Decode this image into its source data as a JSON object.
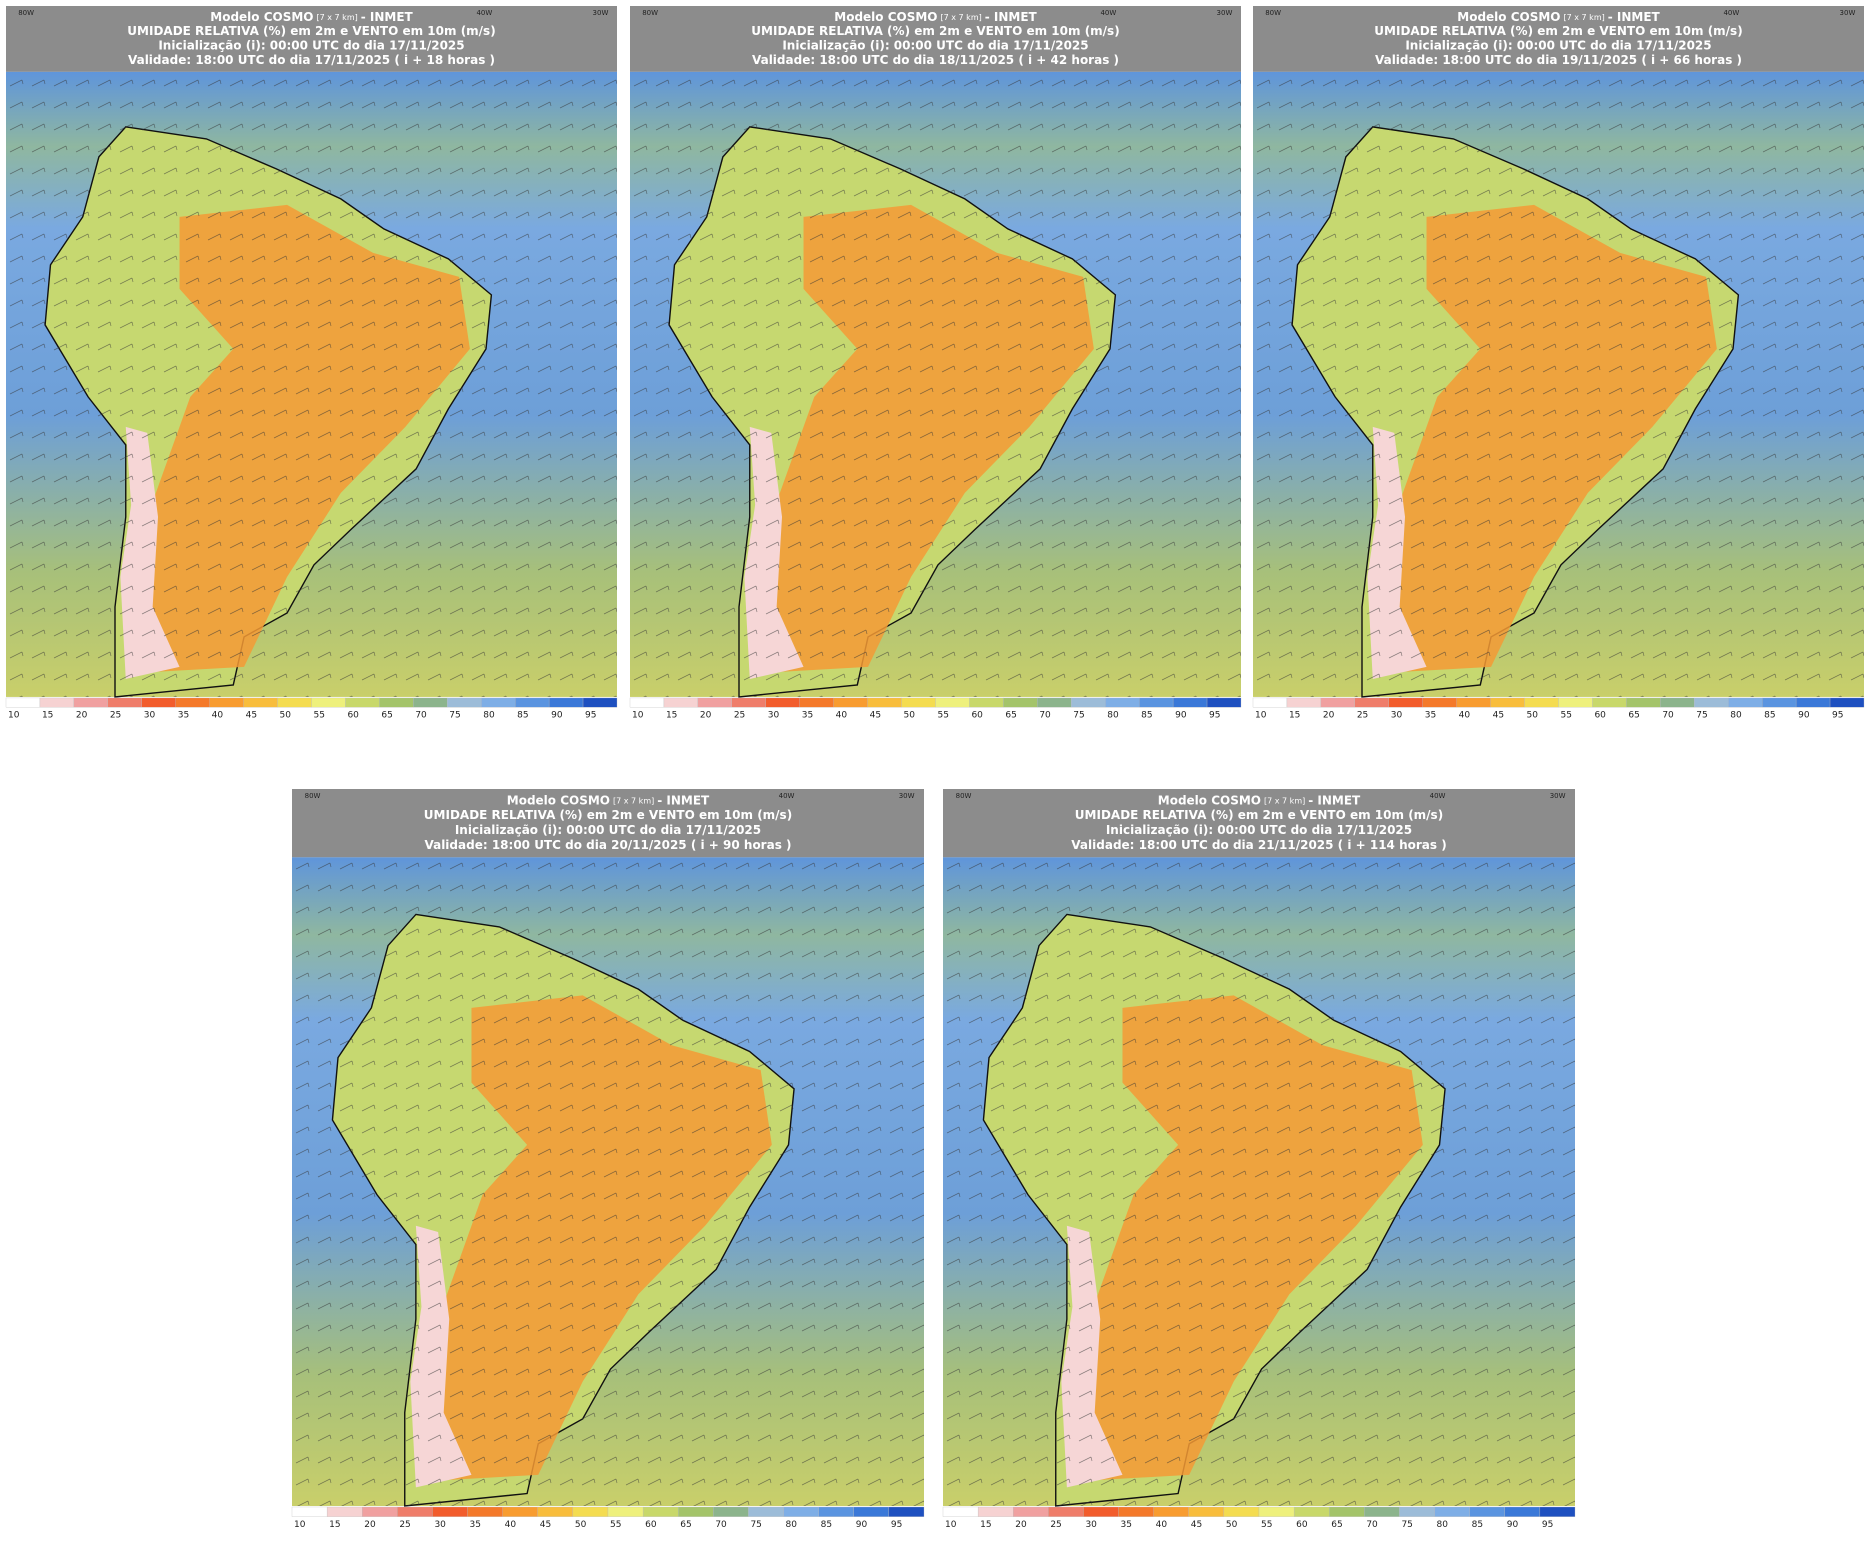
{
  "header": {
    "model_prefix": "Modelo COSMO",
    "resolution": "[7 x 7 km]",
    "model_suffix": "- INMET",
    "variable": "UMIDADE RELATIVA (%) em 2m e VENTO em 10m (m/s)",
    "initialization": "Inicialização (i): 00:00 UTC do dia 17/11/2025",
    "lon_labels": [
      "80W",
      "40W",
      "30W"
    ]
  },
  "panels": [
    {
      "validity": "Validade: 18:00 UTC do dia 17/11/2025 ( i + 18 horas )"
    },
    {
      "validity": "Validade: 18:00 UTC do dia 18/11/2025 ( i + 42 horas )"
    },
    {
      "validity": "Validade: 18:00 UTC do dia 19/11/2025 ( i + 66 horas )"
    },
    {
      "validity": "Validade: 18:00 UTC do dia 20/11/2025 ( i + 90 horas )"
    },
    {
      "validity": "Validade: 18:00 UTC do dia 21/11/2025 ( i + 114 horas )"
    }
  ],
  "colorbar": {
    "labels": [
      10,
      15,
      20,
      25,
      30,
      35,
      40,
      45,
      50,
      55,
      60,
      65,
      70,
      75,
      80,
      85,
      90,
      95
    ],
    "colors": [
      "#ffffff",
      "#f6d2d2",
      "#f0a0a0",
      "#ef7d6a",
      "#f25c2c",
      "#f4792a",
      "#f89c30",
      "#f8bd3c",
      "#f4dc50",
      "#eef07c",
      "#c8d86a",
      "#a4c46a",
      "#8cb48c",
      "#9cbcd8",
      "#7eaee6",
      "#5a94e0",
      "#3a78d8",
      "#1e50c0"
    ]
  }
}
